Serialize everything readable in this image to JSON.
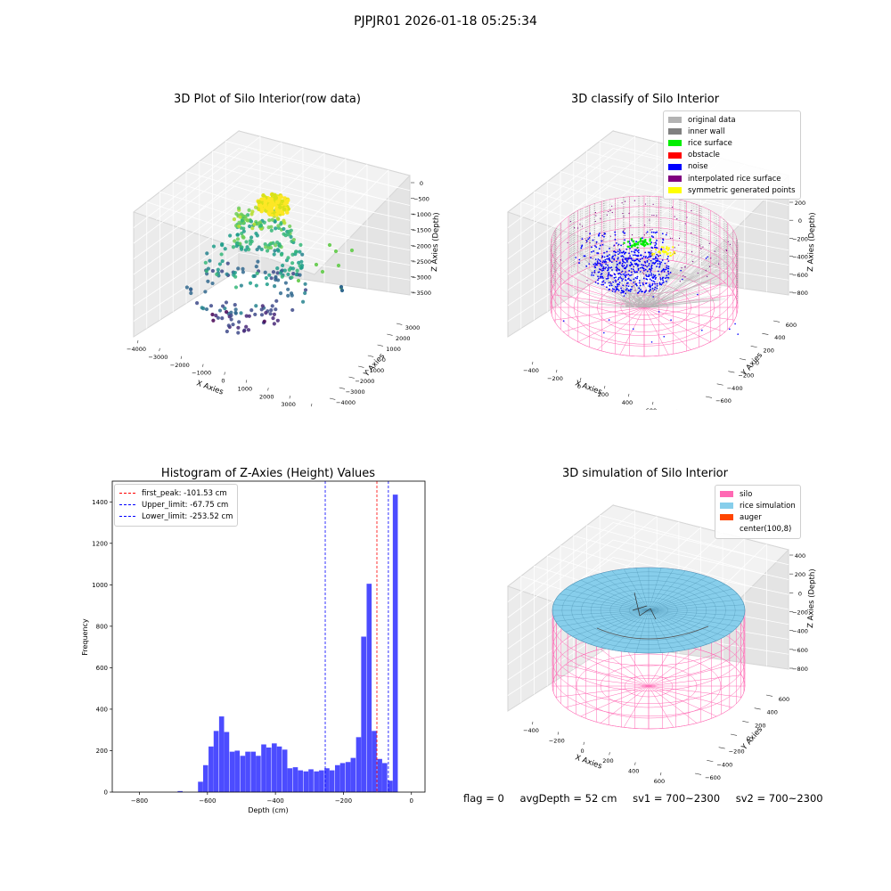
{
  "page": {
    "suptitle": "PJPJR01 2026-01-18 05:25:34"
  },
  "status": {
    "flag": "flag = 0",
    "avg_depth": "avgDepth = 52 cm",
    "sv1": "sv1 = 700~2300",
    "sv2": "sv2 = 700~2300"
  },
  "chart_data": [
    {
      "type": "scatter",
      "title": "3D Plot of Silo Interior(row data)",
      "xlabel": "X Axies",
      "ylabel": "Y Axies",
      "zlabel": "Z Axies (Depth)",
      "x_ticks": [
        "−4000",
        "−3000",
        "−2000",
        "−1000",
        "0",
        "1000",
        "2000",
        "3000",
        "4000"
      ],
      "y_ticks": [
        "−4000",
        "−3000",
        "−2000",
        "−1000",
        "0",
        "1000",
        "2000",
        "3000"
      ],
      "z_ticks": [
        "0",
        "−500",
        "−1000",
        "−1500",
        "−2000",
        "−2500",
        "−3000",
        "−3500"
      ],
      "colormap": "viridis",
      "xlim": [
        -4000,
        4000
      ],
      "ylim": [
        -4000,
        3500
      ],
      "zlim": [
        -3800,
        0
      ]
    },
    {
      "type": "scatter",
      "title": "3D classify of Silo Interior",
      "xlabel": "X Axies",
      "ylabel": "Y Axies",
      "zlabel": "Z Axies (Depth)",
      "x_ticks": [
        "−400",
        "−200",
        "0",
        "200",
        "400",
        "600",
        "800"
      ],
      "y_ticks": [
        "−600",
        "−400",
        "−200",
        "0",
        "200",
        "400",
        "600"
      ],
      "z_ticks": [
        "200",
        "0",
        "−200",
        "−400",
        "−600",
        "−800"
      ],
      "legend": [
        {
          "label": "original data",
          "color": "#b3b3b3"
        },
        {
          "label": "inner wall",
          "color": "#808080"
        },
        {
          "label": "rice surface",
          "color": "#00ee00"
        },
        {
          "label": "obstacle",
          "color": "#ff0000"
        },
        {
          "label": "noise",
          "color": "#0000ff"
        },
        {
          "label": "interpolated rice surface",
          "color": "#800080"
        },
        {
          "label": "symmetric generated points",
          "color": "#ffff00"
        }
      ],
      "legend_position": "top-right"
    },
    {
      "type": "bar",
      "title": "Histogram of Z-Axies (Height) Values",
      "xlabel": "Depth (cm)",
      "ylabel": "Frequency",
      "xlim": [
        -880,
        40
      ],
      "ylim": [
        0,
        1500
      ],
      "x_ticks": [
        -800,
        -600,
        -400,
        -200,
        0
      ],
      "y_ticks": [
        0,
        200,
        400,
        600,
        800,
        1000,
        1200,
        1400
      ],
      "bar_color": "#0000ff",
      "bin_width": 15.5,
      "bins": [
        {
          "x": -680,
          "value": 5
        },
        {
          "x": -620,
          "value": 50
        },
        {
          "x": -605,
          "value": 130
        },
        {
          "x": -589,
          "value": 220
        },
        {
          "x": -574,
          "value": 295
        },
        {
          "x": -558,
          "value": 365
        },
        {
          "x": -543,
          "value": 290
        },
        {
          "x": -527,
          "value": 195
        },
        {
          "x": -512,
          "value": 200
        },
        {
          "x": -496,
          "value": 175
        },
        {
          "x": -481,
          "value": 195
        },
        {
          "x": -465,
          "value": 195
        },
        {
          "x": -450,
          "value": 175
        },
        {
          "x": -434,
          "value": 230
        },
        {
          "x": -419,
          "value": 215
        },
        {
          "x": -403,
          "value": 235
        },
        {
          "x": -388,
          "value": 220
        },
        {
          "x": -372,
          "value": 205
        },
        {
          "x": -357,
          "value": 115
        },
        {
          "x": -341,
          "value": 120
        },
        {
          "x": -326,
          "value": 105
        },
        {
          "x": -310,
          "value": 100
        },
        {
          "x": -295,
          "value": 110
        },
        {
          "x": -279,
          "value": 100
        },
        {
          "x": -264,
          "value": 105
        },
        {
          "x": -248,
          "value": 115
        },
        {
          "x": -233,
          "value": 105
        },
        {
          "x": -217,
          "value": 130
        },
        {
          "x": -202,
          "value": 140
        },
        {
          "x": -186,
          "value": 145
        },
        {
          "x": -171,
          "value": 165
        },
        {
          "x": -155,
          "value": 265
        },
        {
          "x": -140,
          "value": 750
        },
        {
          "x": -124,
          "value": 1005
        },
        {
          "x": -109,
          "value": 295
        },
        {
          "x": -93,
          "value": 160
        },
        {
          "x": -78,
          "value": 140
        },
        {
          "x": -62,
          "value": 55
        },
        {
          "x": -47,
          "value": 1435
        }
      ],
      "vlines": [
        {
          "label": "first_peak: -101.53 cm",
          "x": -101.53,
          "color": "#ff0000"
        },
        {
          "label": "Upper_limit: -67.75 cm",
          "x": -67.75,
          "color": "#0000ff"
        },
        {
          "label": "Lower_limit: -253.52 cm",
          "x": -253.52,
          "color": "#0000ff"
        }
      ],
      "legend_position": "top-left"
    },
    {
      "type": "scatter",
      "title": "3D simulation of Silo Interior",
      "xlabel": "X Axies",
      "ylabel": "Y Axies",
      "zlabel": "Z Axies (Depth)",
      "x_ticks": [
        "−400",
        "−200",
        "0",
        "200",
        "400",
        "600"
      ],
      "y_ticks": [
        "−600",
        "−400",
        "−200",
        "0",
        "200",
        "400",
        "600"
      ],
      "z_ticks": [
        "400",
        "200",
        "0",
        "−200",
        "−400",
        "−600",
        "−800"
      ],
      "legend": [
        {
          "label": "silo",
          "color": "#ff69b4"
        },
        {
          "label": "rice simulation",
          "color": "#87ceeb"
        },
        {
          "label": "auger",
          "color": "#ff4500"
        },
        {
          "label": "center(100,8)",
          "color": "#ffffff"
        }
      ],
      "legend_position": "top-right"
    }
  ]
}
